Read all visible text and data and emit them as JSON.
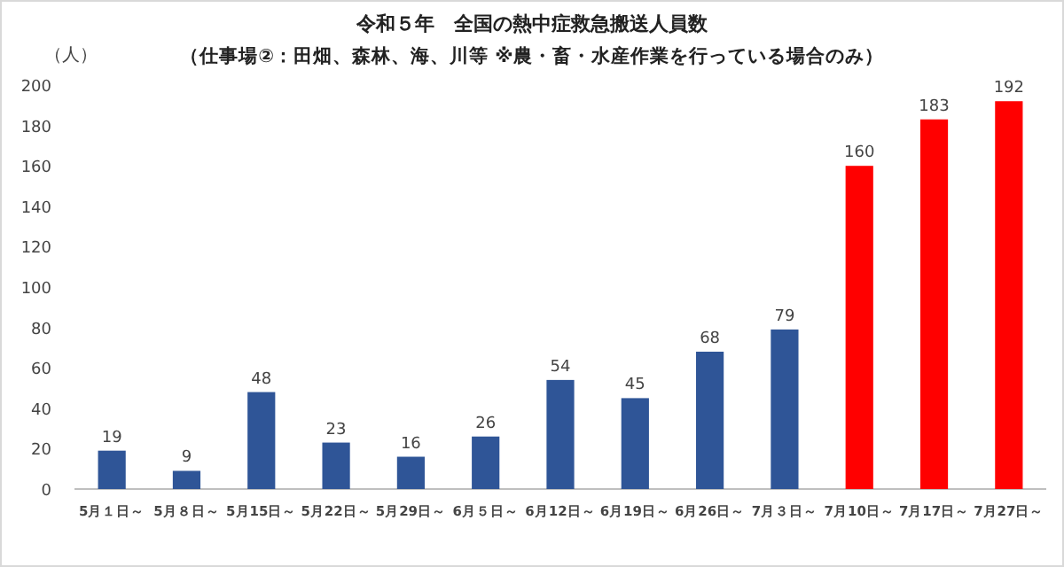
{
  "chart_data": {
    "type": "bar",
    "title": "令和５年　全国の熱中症救急搬送人員数",
    "subtitle": "（仕事場②：田畑、森林、海、川等 ※農・畜・水産作業を行っている場合のみ）",
    "ylabel": "（人）",
    "categories": [
      "5月１日～",
      "5月８日～",
      "5月15日～",
      "5月22日～",
      "5月29日～",
      "6月５日～",
      "6月12日～",
      "6月19日～",
      "6月26日～",
      "7月３日～",
      "7月10日～",
      "7月17日～",
      "7月27日～"
    ],
    "values": [
      19,
      9,
      48,
      23,
      16,
      26,
      54,
      45,
      68,
      79,
      160,
      183,
      192
    ],
    "colors": [
      "#2f5597",
      "#2f5597",
      "#2f5597",
      "#2f5597",
      "#2f5597",
      "#2f5597",
      "#2f5597",
      "#2f5597",
      "#2f5597",
      "#2f5597",
      "#ff0000",
      "#ff0000",
      "#ff0000"
    ],
    "ylim": [
      0,
      200
    ],
    "yticks": [
      0,
      20,
      40,
      60,
      80,
      100,
      120,
      140,
      160,
      180,
      200
    ],
    "data_labels": true
  }
}
